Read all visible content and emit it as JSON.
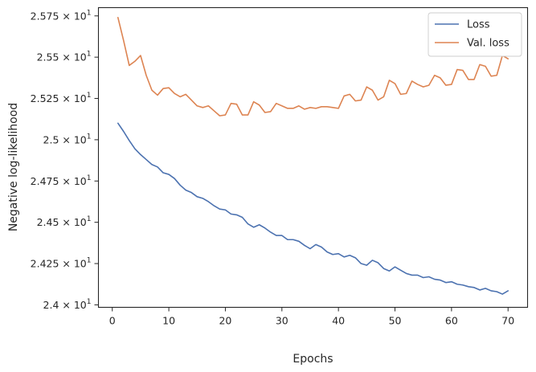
{
  "chart_data": {
    "type": "line",
    "title": "",
    "xlabel": "Epochs",
    "ylabel": "Negative log-likelihood",
    "xlim": [
      -2.45,
      73.45
    ],
    "ylim": [
      23.985,
      25.8
    ],
    "x_ticks": [
      0,
      10,
      20,
      30,
      40,
      50,
      60,
      70
    ],
    "y_ticks": [
      {
        "value": 24.0,
        "mantissa": "2.4"
      },
      {
        "value": 24.25,
        "mantissa": "2.425"
      },
      {
        "value": 24.5,
        "mantissa": "2.45"
      },
      {
        "value": 24.75,
        "mantissa": "2.475"
      },
      {
        "value": 25.0,
        "mantissa": "2.5"
      },
      {
        "value": 25.25,
        "mantissa": "2.525"
      },
      {
        "value": 25.5,
        "mantissa": "2.55"
      },
      {
        "value": 25.75,
        "mantissa": "2.575"
      }
    ],
    "y_tick_base": "10",
    "y_tick_exponent": "1",
    "y_tick_times": "×",
    "grid": false,
    "legend_position": "top-right",
    "x": [
      1,
      2,
      3,
      4,
      5,
      6,
      7,
      8,
      9,
      10,
      11,
      12,
      13,
      14,
      15,
      16,
      17,
      18,
      19,
      20,
      21,
      22,
      23,
      24,
      25,
      26,
      27,
      28,
      29,
      30,
      31,
      32,
      33,
      34,
      35,
      36,
      37,
      38,
      39,
      40,
      41,
      42,
      43,
      44,
      45,
      46,
      47,
      48,
      49,
      50,
      51,
      52,
      53,
      54,
      55,
      56,
      57,
      58,
      59,
      60,
      61,
      62,
      63,
      64,
      65,
      66,
      67,
      68,
      69,
      70
    ],
    "series": [
      {
        "name": "Loss",
        "color": "#4c72b0",
        "values": [
          25.1,
          25.05,
          24.995,
          24.945,
          24.91,
          24.88,
          24.85,
          24.835,
          24.8,
          24.79,
          24.765,
          24.725,
          24.695,
          24.68,
          24.655,
          24.645,
          24.625,
          24.6,
          24.58,
          24.575,
          24.55,
          24.545,
          24.53,
          24.49,
          24.47,
          24.485,
          24.465,
          24.44,
          24.42,
          24.42,
          24.395,
          24.395,
          24.385,
          24.36,
          24.34,
          24.365,
          24.35,
          24.32,
          24.305,
          24.31,
          24.29,
          24.3,
          24.285,
          24.25,
          24.24,
          24.27,
          24.255,
          24.22,
          24.205,
          24.23,
          24.21,
          24.19,
          24.18,
          24.18,
          24.165,
          24.17,
          24.155,
          24.15,
          24.135,
          24.14,
          24.125,
          24.12,
          24.11,
          24.105,
          24.09,
          24.1,
          24.085,
          24.08,
          24.065,
          24.085
        ]
      },
      {
        "name": "Val. loss",
        "color": "#dd8452",
        "values": [
          25.74,
          25.6,
          25.45,
          25.475,
          25.51,
          25.39,
          25.3,
          25.27,
          25.31,
          25.315,
          25.28,
          25.26,
          25.275,
          25.24,
          25.205,
          25.195,
          25.205,
          25.175,
          25.145,
          25.15,
          25.22,
          25.215,
          25.15,
          25.15,
          25.23,
          25.21,
          25.165,
          25.17,
          25.22,
          25.205,
          25.19,
          25.19,
          25.205,
          25.185,
          25.195,
          25.19,
          25.2,
          25.2,
          25.195,
          25.19,
          25.265,
          25.275,
          25.235,
          25.24,
          25.32,
          25.3,
          25.24,
          25.26,
          25.36,
          25.34,
          25.275,
          25.28,
          25.355,
          25.335,
          25.32,
          25.33,
          25.39,
          25.375,
          25.33,
          25.335,
          25.425,
          25.42,
          25.365,
          25.365,
          25.455,
          25.445,
          25.385,
          25.39,
          25.51,
          25.49
        ]
      }
    ]
  }
}
